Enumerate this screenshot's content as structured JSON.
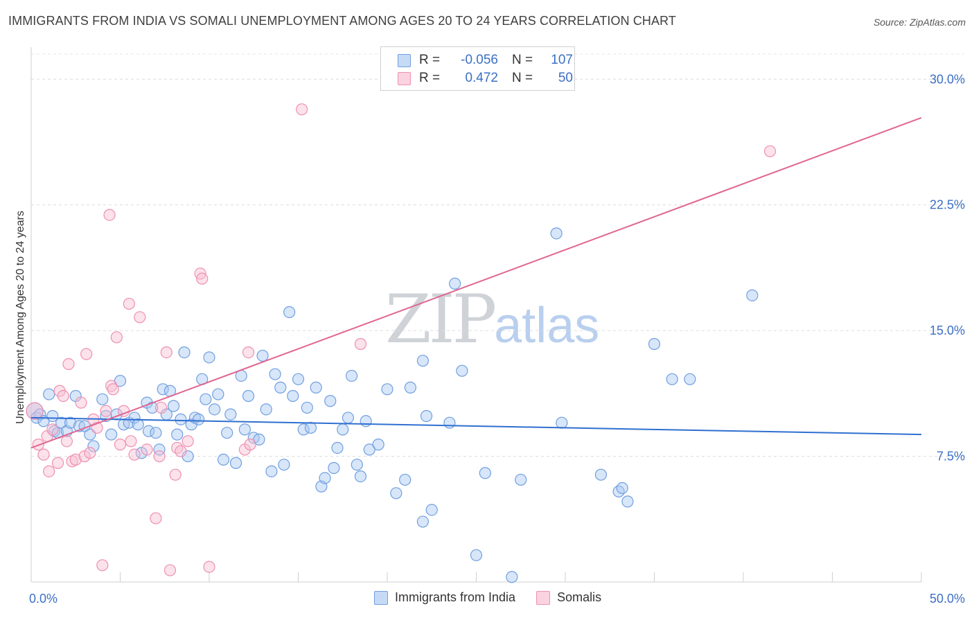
{
  "title": "IMMIGRANTS FROM INDIA VS SOMALI UNEMPLOYMENT AMONG AGES 20 TO 24 YEARS CORRELATION CHART",
  "source": "Source: ZipAtlas.com",
  "watermark": {
    "zip": "ZIP",
    "atlas": "atlas"
  },
  "legend": {
    "r_label": "R =",
    "n_label": "N =",
    "series": [
      {
        "name": "Immigrants from India",
        "r": "-0.056",
        "n": "107"
      },
      {
        "name": "Somalis",
        "r": "0.472",
        "n": "50"
      }
    ]
  },
  "chart_data": {
    "type": "scatter",
    "title": "IMMIGRANTS FROM INDIA VS SOMALI UNEMPLOYMENT AMONG AGES 20 TO 24 YEARS CORRELATION CHART",
    "xlabel": "",
    "ylabel": "Unemployment Among Ages 20 to 24 years",
    "xlim": [
      0,
      50
    ],
    "ylim": [
      0,
      31.5
    ],
    "x_tick_labels": [
      "0.0%",
      "50.0%"
    ],
    "y_ticks": [
      7.5,
      15.0,
      22.5,
      30.0
    ],
    "y_tick_labels": [
      "7.5%",
      "15.0%",
      "22.5%",
      "30.0%"
    ],
    "grid": true,
    "colors": {
      "india": "#6f9fe0",
      "india_fill": "#a9c8f2",
      "india_line": "#2f6fd0",
      "somali": "#f08fb0",
      "somali_fill": "#f7bfd2",
      "somali_line": "#e06691",
      "tick": "#3b6fc4"
    },
    "series": [
      {
        "name": "Immigrants from India",
        "trend": {
          "x": [
            0,
            50
          ],
          "y": [
            9.8,
            8.8
          ]
        },
        "points": [
          [
            0.2,
            10.2
          ],
          [
            0.3,
            9.8
          ],
          [
            0.5,
            10.0
          ],
          [
            0.7,
            9.6
          ],
          [
            1.0,
            11.2
          ],
          [
            1.2,
            9.9
          ],
          [
            1.3,
            9.0
          ],
          [
            1.5,
            8.9
          ],
          [
            1.7,
            9.5
          ],
          [
            2.0,
            9.0
          ],
          [
            2.2,
            9.5
          ],
          [
            2.5,
            11.1
          ],
          [
            2.7,
            9.3
          ],
          [
            3.0,
            9.3
          ],
          [
            3.3,
            8.8
          ],
          [
            3.5,
            8.1
          ],
          [
            4.0,
            10.9
          ],
          [
            4.2,
            9.9
          ],
          [
            4.5,
            8.8
          ],
          [
            4.8,
            10.0
          ],
          [
            5.0,
            12.0
          ],
          [
            5.2,
            9.4
          ],
          [
            5.5,
            9.5
          ],
          [
            5.8,
            9.8
          ],
          [
            6.0,
            9.4
          ],
          [
            6.2,
            7.7
          ],
          [
            6.5,
            10.7
          ],
          [
            6.6,
            9.0
          ],
          [
            6.8,
            10.4
          ],
          [
            7.0,
            8.9
          ],
          [
            7.2,
            7.9
          ],
          [
            7.4,
            11.5
          ],
          [
            7.6,
            10.0
          ],
          [
            7.8,
            11.4
          ],
          [
            8.0,
            10.5
          ],
          [
            8.2,
            8.8
          ],
          [
            8.4,
            9.7
          ],
          [
            8.6,
            13.7
          ],
          [
            8.8,
            7.5
          ],
          [
            9.0,
            9.4
          ],
          [
            9.2,
            9.8
          ],
          [
            9.4,
            9.7
          ],
          [
            9.6,
            12.1
          ],
          [
            9.8,
            10.9
          ],
          [
            10.0,
            13.4
          ],
          [
            10.3,
            10.3
          ],
          [
            10.5,
            11.2
          ],
          [
            10.8,
            7.3
          ],
          [
            11.0,
            8.9
          ],
          [
            11.2,
            10.0
          ],
          [
            11.5,
            7.1
          ],
          [
            11.8,
            12.3
          ],
          [
            12.0,
            9.1
          ],
          [
            12.2,
            11.1
          ],
          [
            12.5,
            8.6
          ],
          [
            12.8,
            8.5
          ],
          [
            13.0,
            13.5
          ],
          [
            13.2,
            10.3
          ],
          [
            13.5,
            6.6
          ],
          [
            13.7,
            12.4
          ],
          [
            14.0,
            11.6
          ],
          [
            14.2,
            7.0
          ],
          [
            14.5,
            16.1
          ],
          [
            14.7,
            11.1
          ],
          [
            15.0,
            12.1
          ],
          [
            15.3,
            9.1
          ],
          [
            15.5,
            10.4
          ],
          [
            15.7,
            9.2
          ],
          [
            16.0,
            11.6
          ],
          [
            16.3,
            5.7
          ],
          [
            16.5,
            6.2
          ],
          [
            16.8,
            10.8
          ],
          [
            17.0,
            6.8
          ],
          [
            17.2,
            8.0
          ],
          [
            17.5,
            9.1
          ],
          [
            17.8,
            9.8
          ],
          [
            18.0,
            12.3
          ],
          [
            18.3,
            7.0
          ],
          [
            18.5,
            6.3
          ],
          [
            18.8,
            9.6
          ],
          [
            19.0,
            7.9
          ],
          [
            19.5,
            8.2
          ],
          [
            20.0,
            11.5
          ],
          [
            20.5,
            5.3
          ],
          [
            21.0,
            6.1
          ],
          [
            21.3,
            11.6
          ],
          [
            22.0,
            13.2
          ],
          [
            22.0,
            3.6
          ],
          [
            22.2,
            9.9
          ],
          [
            22.5,
            4.3
          ],
          [
            23.5,
            9.5
          ],
          [
            23.8,
            17.8
          ],
          [
            24.2,
            12.6
          ],
          [
            25.0,
            1.6
          ],
          [
            25.5,
            6.5
          ],
          [
            27.0,
            0.3
          ],
          [
            27.5,
            6.1
          ],
          [
            29.5,
            20.8
          ],
          [
            29.8,
            9.5
          ],
          [
            32.0,
            6.4
          ],
          [
            33.0,
            5.4
          ],
          [
            33.2,
            5.6
          ],
          [
            33.5,
            4.8
          ],
          [
            35.0,
            14.2
          ],
          [
            36.0,
            12.1
          ],
          [
            37.0,
            12.1
          ],
          [
            40.5,
            17.1
          ]
        ]
      },
      {
        "name": "Somalis",
        "trend": {
          "x": [
            0,
            50
          ],
          "y": [
            8.0,
            27.7
          ]
        },
        "points": [
          [
            0.2,
            10.2
          ],
          [
            0.4,
            8.2
          ],
          [
            0.7,
            7.6
          ],
          [
            0.9,
            8.7
          ],
          [
            1.0,
            6.6
          ],
          [
            1.2,
            9.1
          ],
          [
            1.5,
            7.1
          ],
          [
            1.6,
            11.4
          ],
          [
            1.8,
            11.1
          ],
          [
            2.0,
            8.4
          ],
          [
            2.1,
            13.0
          ],
          [
            2.3,
            7.2
          ],
          [
            2.5,
            7.3
          ],
          [
            2.8,
            10.7
          ],
          [
            3.0,
            7.5
          ],
          [
            3.1,
            13.6
          ],
          [
            3.3,
            7.7
          ],
          [
            3.5,
            9.7
          ],
          [
            3.7,
            9.2
          ],
          [
            4.0,
            1.0
          ],
          [
            4.2,
            10.2
          ],
          [
            4.4,
            21.9
          ],
          [
            4.5,
            11.7
          ],
          [
            4.6,
            11.5
          ],
          [
            4.8,
            14.6
          ],
          [
            5.0,
            8.2
          ],
          [
            5.2,
            10.2
          ],
          [
            5.5,
            16.6
          ],
          [
            5.6,
            8.4
          ],
          [
            5.8,
            7.6
          ],
          [
            6.1,
            15.8
          ],
          [
            6.5,
            7.9
          ],
          [
            7.0,
            3.8
          ],
          [
            7.2,
            7.5
          ],
          [
            7.3,
            10.4
          ],
          [
            7.6,
            13.7
          ],
          [
            7.8,
            0.7
          ],
          [
            8.1,
            6.4
          ],
          [
            8.2,
            8.0
          ],
          [
            8.4,
            7.8
          ],
          [
            8.8,
            8.4
          ],
          [
            9.5,
            18.4
          ],
          [
            9.6,
            18.1
          ],
          [
            10.0,
            0.9
          ],
          [
            12.0,
            7.9
          ],
          [
            12.2,
            13.7
          ],
          [
            12.3,
            8.2
          ],
          [
            15.2,
            28.2
          ],
          [
            18.5,
            14.2
          ],
          [
            41.5,
            25.7
          ]
        ]
      }
    ]
  }
}
